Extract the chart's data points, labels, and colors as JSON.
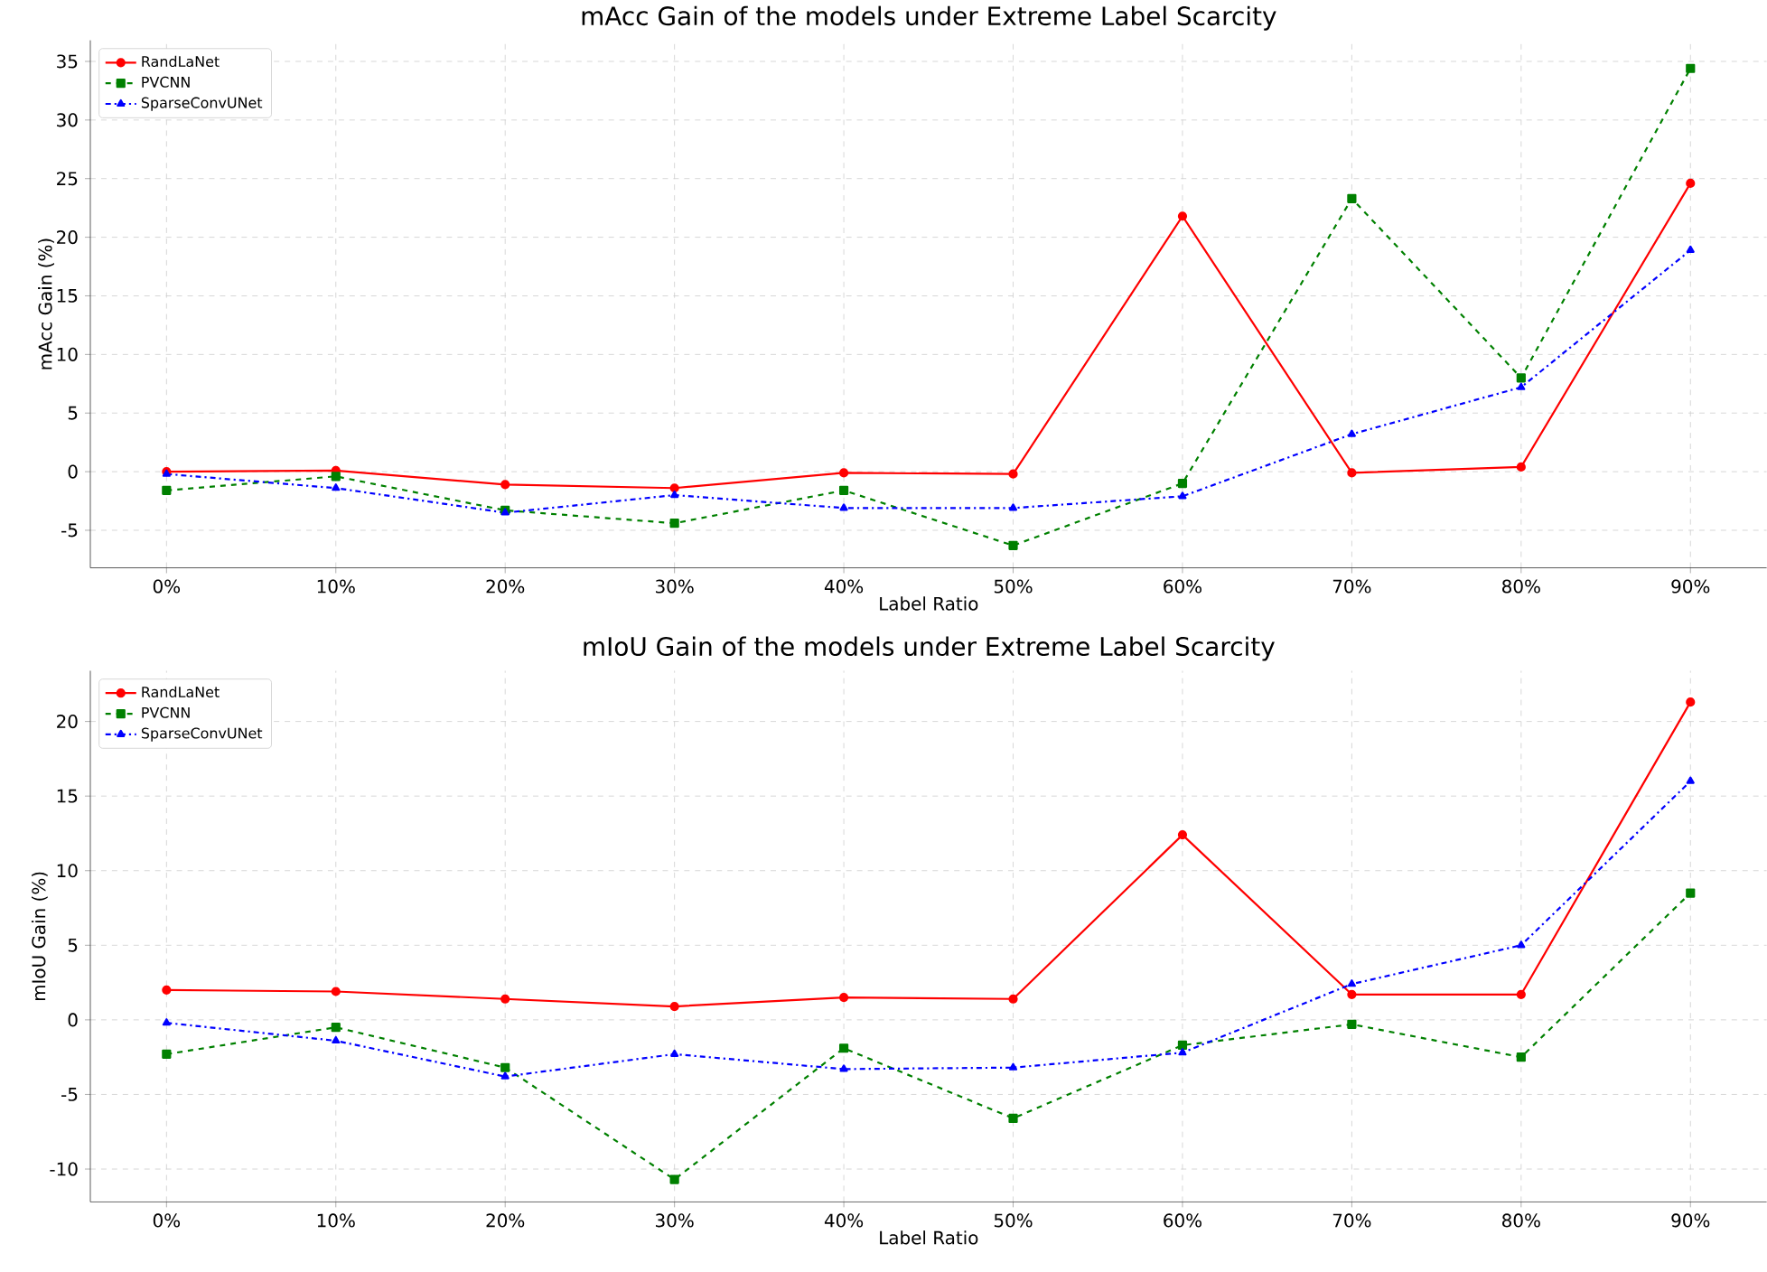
{
  "chart_data": [
    {
      "type": "line",
      "title": "mAcc Gain of the models under Extreme Label Scarcity",
      "xlabel": "Label Ratio",
      "ylabel": "mAcc Gain (%)",
      "categories": [
        "0%",
        "10%",
        "20%",
        "30%",
        "40%",
        "50%",
        "60%",
        "70%",
        "80%",
        "90%"
      ],
      "series": [
        {
          "name": "RandLaNet",
          "color": "#ff0000",
          "marker": "circle",
          "line_style": "solid",
          "values": [
            0.0,
            0.1,
            -1.1,
            -1.4,
            -0.1,
            -0.2,
            21.8,
            -0.1,
            0.4,
            24.6
          ]
        },
        {
          "name": "PVCNN",
          "color": "#008000",
          "marker": "square",
          "line_style": "dashed",
          "values": [
            -1.6,
            -0.4,
            -3.3,
            -4.4,
            -1.6,
            -6.3,
            -1.0,
            23.3,
            8.0,
            34.4
          ]
        },
        {
          "name": "SparseConvUNet",
          "color": "#0000ff",
          "marker": "triangle",
          "line_style": "dashdot",
          "values": [
            -0.2,
            -1.4,
            -3.5,
            -2.0,
            -3.1,
            -3.1,
            -2.1,
            3.2,
            7.2,
            18.9
          ]
        }
      ],
      "ylim": [
        -8.2,
        36.8
      ],
      "yticks": [
        -5,
        0,
        5,
        10,
        15,
        20,
        25,
        30,
        35
      ],
      "grid": true,
      "legend": "top left"
    },
    {
      "type": "line",
      "title": "mIoU Gain of the models under Extreme Label Scarcity",
      "xlabel": "Label Ratio",
      "ylabel": "mIoU Gain (%)",
      "categories": [
        "0%",
        "10%",
        "20%",
        "30%",
        "40%",
        "50%",
        "60%",
        "70%",
        "80%",
        "90%"
      ],
      "series": [
        {
          "name": "RandLaNet",
          "color": "#ff0000",
          "marker": "circle",
          "line_style": "solid",
          "values": [
            2.0,
            1.9,
            1.4,
            0.9,
            1.5,
            1.4,
            12.4,
            1.7,
            1.7,
            21.3
          ]
        },
        {
          "name": "PVCNN",
          "color": "#008000",
          "marker": "square",
          "line_style": "dashed",
          "values": [
            -2.3,
            -0.5,
            -3.2,
            -10.7,
            -1.9,
            -6.6,
            -1.7,
            -0.3,
            -2.5,
            8.5
          ]
        },
        {
          "name": "SparseConvUNet",
          "color": "#0000ff",
          "marker": "triangle",
          "line_style": "dashdot",
          "values": [
            -0.2,
            -1.4,
            -3.8,
            -2.3,
            -3.3,
            -3.2,
            -2.2,
            2.4,
            5.0,
            16.0
          ]
        }
      ],
      "ylim": [
        -12.2,
        23.4
      ],
      "yticks": [
        -10,
        -5,
        0,
        5,
        10,
        15,
        20
      ],
      "grid": true,
      "legend": "top left"
    }
  ]
}
